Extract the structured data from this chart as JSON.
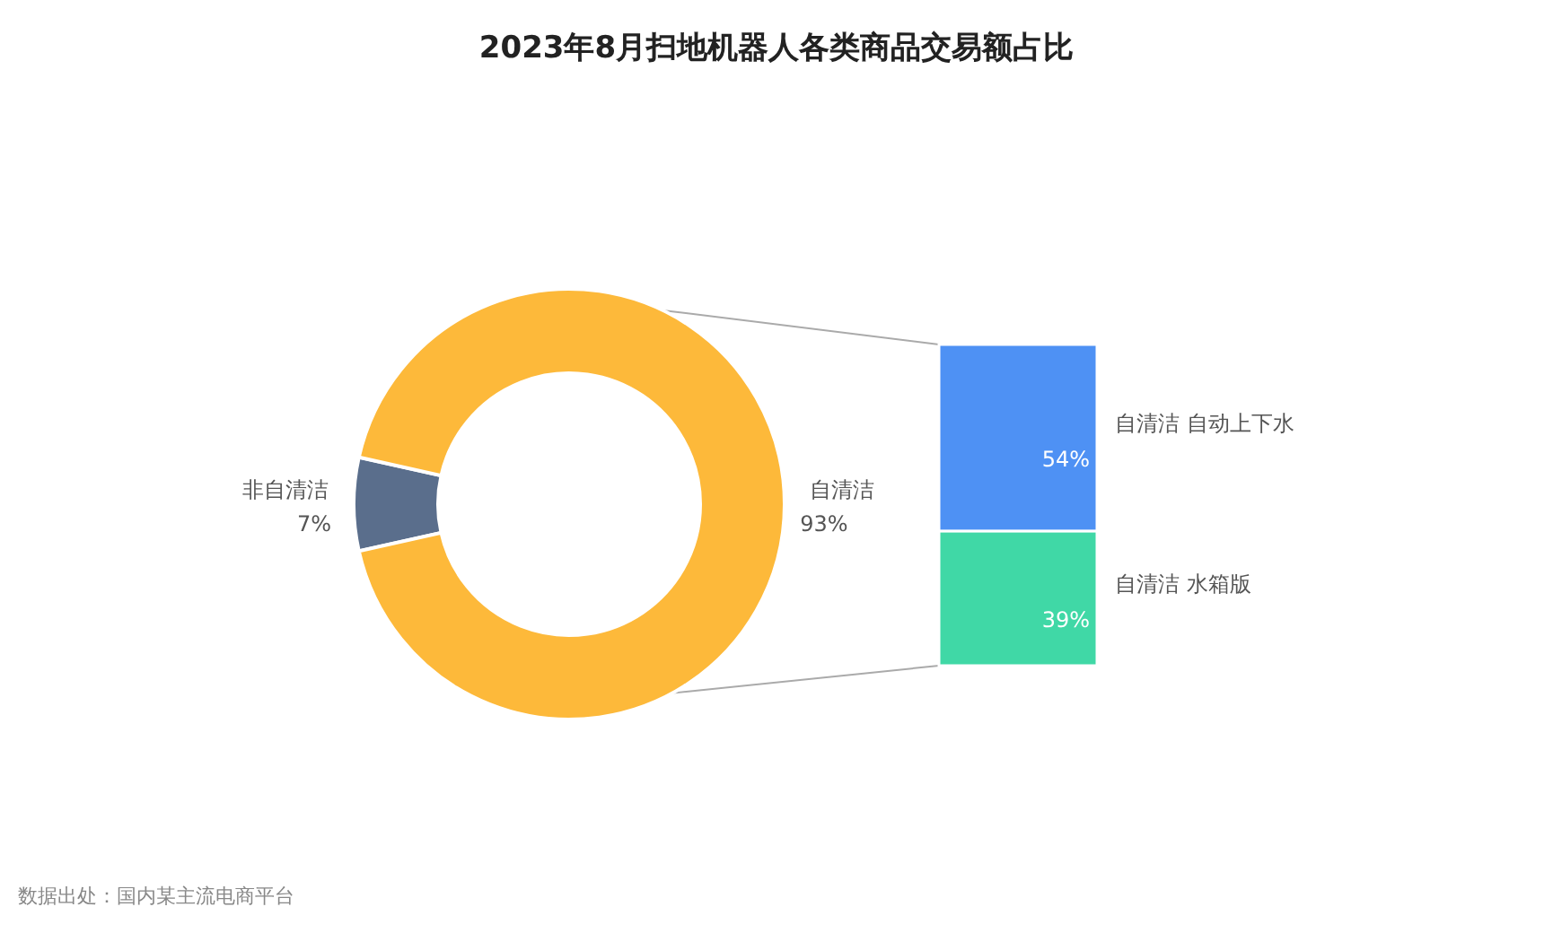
{
  "chart_data": [
    {
      "type": "donut",
      "title": "2023年8月扫地机器人各类商品交易额占比",
      "categories": [
        "非自清洁",
        "自清洁"
      ],
      "values": [
        7,
        93
      ],
      "colors": [
        "#5a6e8c",
        "#fdb93a"
      ],
      "value_labels": [
        "7%",
        "93%"
      ],
      "annotations": [
        "数据出处：国内某主流电商平台"
      ]
    },
    {
      "type": "bar",
      "stacked": true,
      "categories": [
        null
      ],
      "series": [
        {
          "name": "自清洁 水箱版",
          "color": "#40d8a6",
          "values": [
            39
          ],
          "value_labels": [
            "39%"
          ]
        },
        {
          "name": "自清洁 自动上下水",
          "color": "#4e91f4",
          "values": [
            54
          ],
          "value_labels": [
            "54%"
          ]
        }
      ]
    }
  ]
}
